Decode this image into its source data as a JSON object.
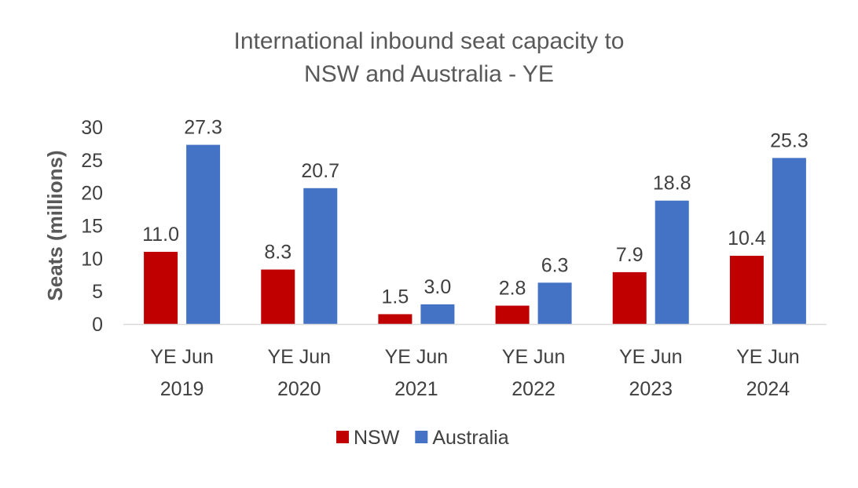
{
  "chart_data": {
    "type": "bar",
    "title": [
      "International inbound seat capacity to",
      "NSW and Australia - YE"
    ],
    "ylabel": "Seats (millions)",
    "xlabel": "",
    "ylim": [
      0,
      30
    ],
    "yticks": [
      "0",
      "5",
      "10",
      "15",
      "20",
      "25",
      "30"
    ],
    "categories": [
      [
        "YE Jun",
        "2019"
      ],
      [
        "YE Jun",
        "2020"
      ],
      [
        "YE Jun",
        "2021"
      ],
      [
        "YE Jun",
        "2022"
      ],
      [
        "YE Jun",
        "2023"
      ],
      [
        "YE Jun",
        "2024"
      ]
    ],
    "series": [
      {
        "name": "NSW",
        "color": "#c00000",
        "values": [
          11.0,
          8.3,
          1.5,
          2.8,
          7.9,
          10.4
        ],
        "labels": [
          "11.0",
          "8.3",
          "1.5",
          "2.8",
          "7.9",
          "10.4"
        ]
      },
      {
        "name": "Australia",
        "color": "#4472c4",
        "values": [
          27.3,
          20.7,
          3.0,
          6.3,
          18.8,
          25.3
        ],
        "labels": [
          "27.3",
          "20.7",
          "3.0",
          "6.3",
          "18.8",
          "25.3"
        ]
      }
    ],
    "grid": false,
    "legend_position": "bottom"
  }
}
